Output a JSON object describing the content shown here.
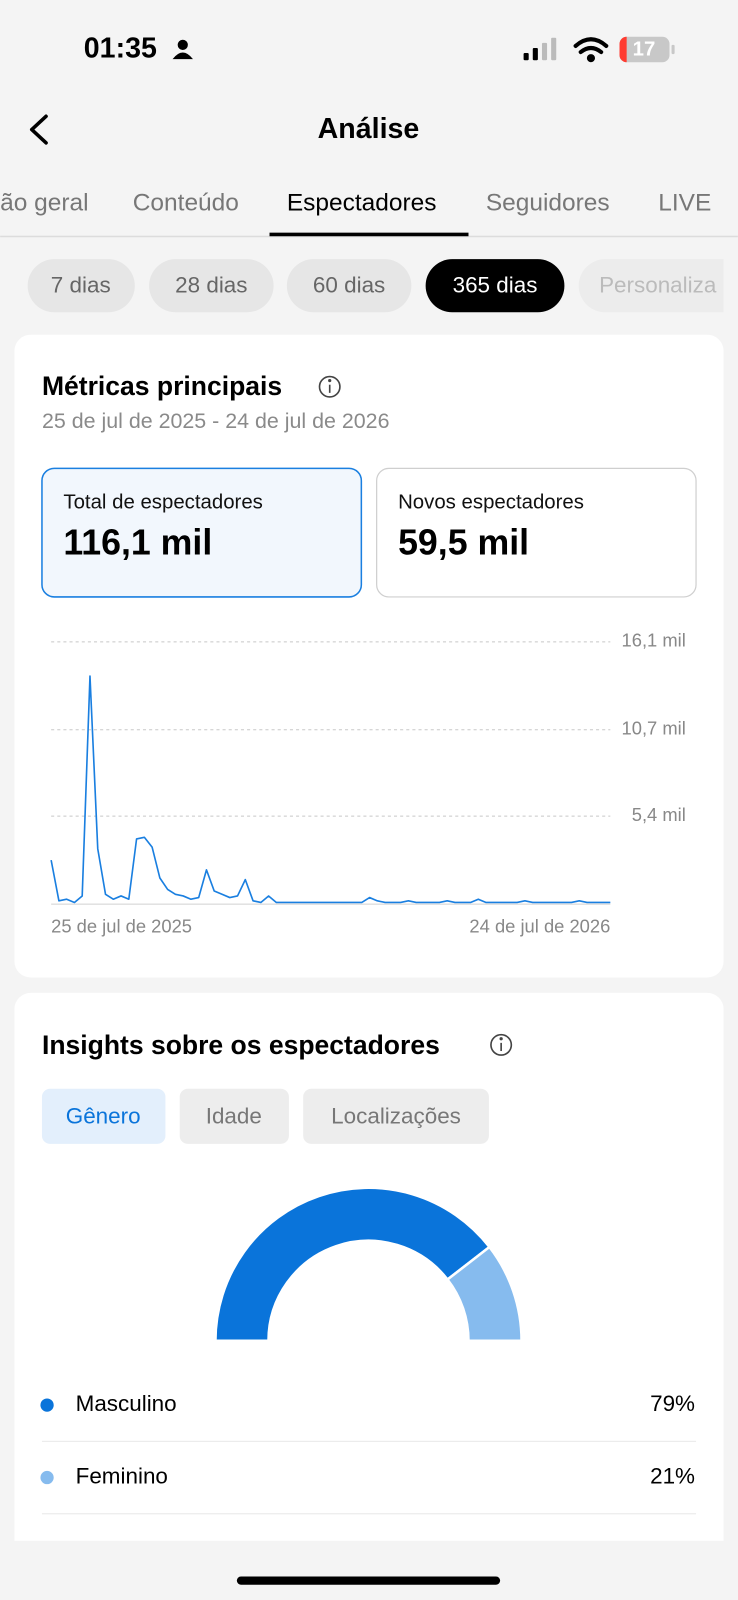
{
  "status_bar": {
    "time": "01:35",
    "battery": "17"
  },
  "header": {
    "title": "Análise"
  },
  "tabs": [
    "ão geral",
    "Conteúdo",
    "Espectadores",
    "Seguidores",
    "LIVE"
  ],
  "periods": [
    "7 dias",
    "28 dias",
    "60 dias",
    "365 dias",
    "Personaliza"
  ],
  "metrics": {
    "title": "Métricas principais",
    "date_range": "25 de jul de 2025 - 24 de jul de 2026",
    "cards": [
      {
        "label": "Total de espectadores",
        "value": "116,1 mil"
      },
      {
        "label": "Novos espectadores",
        "value": "59,5 mil"
      }
    ]
  },
  "insights": {
    "title": "Insights sobre os espectadores",
    "filters": [
      "Gênero",
      "Idade",
      "Localizações"
    ]
  },
  "chart_data": [
    {
      "type": "line",
      "color": "#1a7fe0",
      "x_axis_labels": [
        "25 de jul de 2025",
        "24 de jul de 2026"
      ],
      "values": [
        2.7,
        0.2,
        0.3,
        0.1,
        0.5,
        14.0,
        3.4,
        0.6,
        0.3,
        0.5,
        0.3,
        4.0,
        4.1,
        3.5,
        1.6,
        0.9,
        0.6,
        0.5,
        0.3,
        0.4,
        2.1,
        0.8,
        0.6,
        0.4,
        0.5,
        1.5,
        0.2,
        0.1,
        0.5,
        0.1,
        0.1,
        0.1,
        0.1,
        0.1,
        0.1,
        0.1,
        0.1,
        0.1,
        0.1,
        0.1,
        0.1,
        0.4,
        0.2,
        0.1,
        0.1,
        0.1,
        0.2,
        0.1,
        0.1,
        0.1,
        0.1,
        0.2,
        0.1,
        0.1,
        0.1,
        0.3,
        0.1,
        0.1,
        0.1,
        0.1,
        0.1,
        0.2,
        0.1,
        0.1,
        0.1,
        0.1,
        0.1,
        0.1,
        0.2,
        0.1,
        0.1,
        0.1,
        0.1
      ],
      "ylim": [
        0,
        16.1
      ],
      "yticks": [
        {
          "value": 5.4,
          "label": "5,4 mil"
        },
        {
          "value": 10.7,
          "label": "10,7 mil"
        },
        {
          "value": 16.1,
          "label": "16,1 mil"
        }
      ],
      "grid": true
    },
    {
      "type": "donut",
      "categories": [
        "Masculino",
        "Feminino"
      ],
      "values": [
        79,
        21
      ],
      "value_labels": [
        "79%",
        "21%"
      ],
      "colors": [
        "#0a74da",
        "#86bbee"
      ]
    }
  ]
}
